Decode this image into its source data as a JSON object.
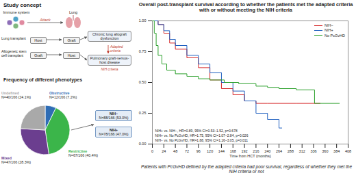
{
  "diagram": {
    "title": "Study concept",
    "nodes": {
      "immune_system": "Immune system",
      "lung": "Lung",
      "attack": "Attack",
      "host": "Host",
      "graft": "Graft",
      "lung_transplant": "Lung transplant",
      "allo_hct": "Allogeneic stem cell transplant",
      "clad": "Chronic lung allograft dysfunction",
      "pgvhd": "Pulmonary graft-versus-host disease",
      "adapted": "Adapted criteria",
      "nih": "NIH criteria"
    },
    "nih_split": [
      {
        "label": "NIH−",
        "text": "N=88/166 (53.0%)"
      },
      {
        "label": "NIH+",
        "text": "N=78/166 (47.0%)"
      }
    ]
  },
  "chart_data": [
    {
      "type": "pie",
      "title": "Frequency of different phenotypes",
      "categories": [
        "Obstructive",
        "Restrictive",
        "Mixed",
        "Undefined"
      ],
      "values": [
        7.2,
        40.4,
        28.3,
        24.1
      ],
      "value_labels": [
        "N=12/166 (7.2%)",
        "N=67/166 (40.4%)",
        "N=47/166 (28.3%)",
        "N=40/166 (24.1%)"
      ],
      "colors": [
        "#2f6db5",
        "#3bb54a",
        "#6b3e8f",
        "#a9a9a9"
      ],
      "data_labels": true
    },
    {
      "type": "line",
      "title": "Overall post-transplant survival according to whether the patients met the adapted criteria with or without meeting the NIH criteria",
      "x_label": "Time from HCT (months)",
      "xlim": [
        0,
        408
      ],
      "xticks": [
        0,
        24,
        48,
        72,
        96,
        120,
        144,
        168,
        192,
        216,
        240,
        264,
        288,
        312,
        336,
        360,
        384,
        408
      ],
      "ylim": [
        0,
        1
      ],
      "yticks": [
        {
          "value": 0,
          "label": "0.00"
        },
        {
          "value": 0.25,
          "label": "0.25"
        },
        {
          "value": 0.5,
          "label": "0.50"
        },
        {
          "value": 0.75,
          "label": "0.75"
        },
        {
          "value": 1,
          "label": "1.00"
        }
      ],
      "line_style": "step",
      "legend": "top-right",
      "series": [
        {
          "name": "NIH−",
          "color": "#d62728",
          "x": [
            0,
            12,
            24,
            36,
            48,
            72,
            96,
            120,
            144,
            168,
            192,
            216,
            240,
            300,
            350
          ],
          "values": [
            1.0,
            0.97,
            0.9,
            0.82,
            0.77,
            0.7,
            0.62,
            0.52,
            0.45,
            0.4,
            0.35,
            0.33,
            0.33,
            0.33,
            0.33
          ]
        },
        {
          "name": "NIH+",
          "color": "#1f5fbf",
          "x": [
            0,
            12,
            24,
            36,
            48,
            72,
            96,
            120,
            144,
            168,
            192,
            216,
            240,
            264,
            270
          ],
          "values": [
            1.0,
            0.97,
            0.92,
            0.85,
            0.8,
            0.72,
            0.65,
            0.58,
            0.5,
            0.43,
            0.35,
            0.25,
            0.2,
            0.13,
            0.13
          ]
        },
        {
          "name": "No PcGvHD",
          "color": "#2ca02c",
          "x": [
            0,
            4,
            8,
            12,
            20,
            30,
            48,
            72,
            96,
            120,
            150,
            180,
            216,
            240,
            264,
            300,
            338,
            390
          ],
          "values": [
            1.0,
            0.9,
            0.8,
            0.72,
            0.65,
            0.6,
            0.57,
            0.55,
            0.53,
            0.52,
            0.5,
            0.49,
            0.47,
            0.46,
            0.45,
            0.44,
            0.33,
            0.33
          ]
        }
      ],
      "annotations": [
        "NIH+ vs. NIH−, HR=0.89, 95% CI=0.53–1.52, p=0.678",
        "NIH+ vs. No PcGvHD, HR=1.75, 95% CI=1.07–2.84, p=0.026",
        "NIH− vs. No PcGvHD, HR=1.88, 95% CI=1.16–3.05, p=0.011"
      ],
      "caption": "Patients with PcGvHD defined by the adapted criteria had poor survival, regardless of whether they met the NIH criteria or not"
    }
  ]
}
